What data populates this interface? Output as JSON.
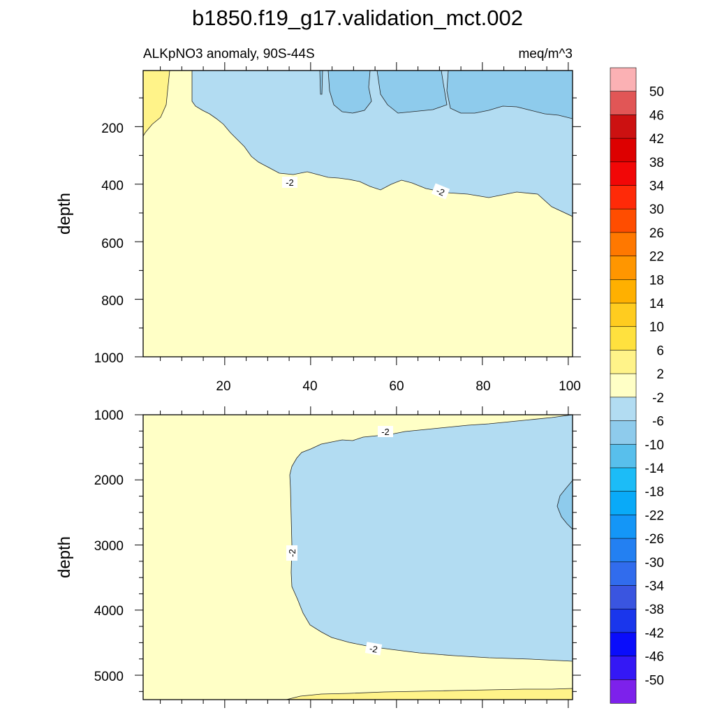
{
  "title": "b1850.f19_g17.validation_mct.002",
  "subtitle_left": "ALKpNO3 anomaly, 90S-44S",
  "subtitle_right": "meq/m^3",
  "colors": {
    "yellow_pale": "#ffffc6",
    "yellow": "#fff389",
    "blue_pale": "#b2dcf2",
    "blue": "#8ecbec",
    "contour": "#222222"
  },
  "chart_data": [
    {
      "type": "contour",
      "panel": "upper",
      "ylabel": "depth",
      "x_ticks": [
        20,
        40,
        60,
        80,
        100
      ],
      "y_ticks": [
        200,
        400,
        600,
        800,
        1000
      ],
      "xlim": [
        1,
        101
      ],
      "ylim": [
        1000,
        5
      ],
      "contour_labels": [
        "-2",
        "-2"
      ]
    },
    {
      "type": "contour",
      "panel": "lower",
      "ylabel": "depth",
      "x_ticks": [],
      "y_ticks": [
        1000,
        2000,
        3000,
        4000,
        5000
      ],
      "xlim": [
        1,
        101
      ],
      "ylim": [
        5375,
        1000
      ],
      "contour_labels": [
        "-2",
        "-2",
        "-2"
      ]
    }
  ],
  "colorbar": {
    "labels": [
      "50",
      "46",
      "42",
      "38",
      "34",
      "30",
      "26",
      "22",
      "18",
      "14",
      "10",
      "6",
      "2",
      "-2",
      "-6",
      "-10",
      "-14",
      "-18",
      "-22",
      "-26",
      "-30",
      "-34",
      "-38",
      "-42",
      "-46",
      "-50"
    ],
    "colors": [
      "#fbb1b4",
      "#e15656",
      "#cc1111",
      "#dd0000",
      "#f20707",
      "#ff2a08",
      "#ff4d00",
      "#ff7800",
      "#ff9600",
      "#ffb000",
      "#ffcc1f",
      "#ffe13e",
      "#fff389",
      "#ffffc6",
      "#b2dcf2",
      "#8ecbec",
      "#58bfec",
      "#1cbcf7",
      "#09aaf8",
      "#1496f7",
      "#2380f2",
      "#316ced",
      "#3a55e0",
      "#1a36ec",
      "#0a0dfb",
      "#3418f5",
      "#7d21eb"
    ]
  }
}
